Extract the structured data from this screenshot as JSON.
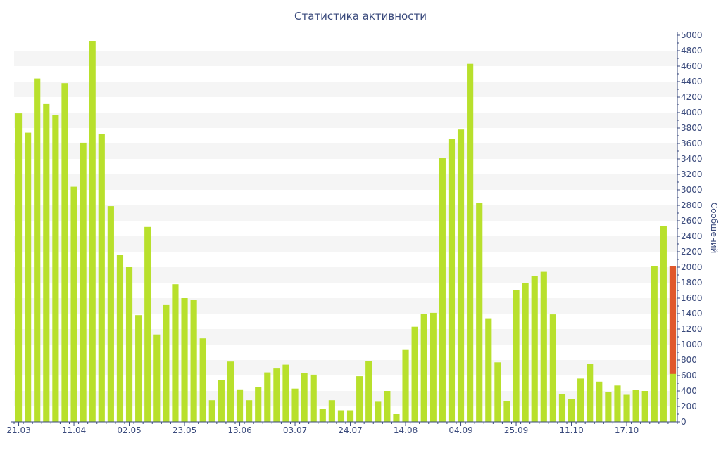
{
  "chart_data": {
    "type": "bar",
    "title": "Статистика активности",
    "ylabel": "Сообщений",
    "ylim": [
      0,
      5000
    ],
    "y_ticks": [
      0,
      200,
      400,
      600,
      800,
      1000,
      1200,
      1400,
      1600,
      1800,
      2000,
      2200,
      2400,
      2600,
      2800,
      3000,
      3200,
      3400,
      3600,
      3800,
      4000,
      4200,
      4400,
      4600,
      4800,
      5000
    ],
    "y_axis_position": "right",
    "grid": "alternating horizontal bands",
    "x_tick_labels": [
      {
        "label": "21.03",
        "index": 0
      },
      {
        "label": "11.04",
        "index": 6
      },
      {
        "label": "02.05",
        "index": 12
      },
      {
        "label": "23.05",
        "index": 18
      },
      {
        "label": "13.06",
        "index": 24
      },
      {
        "label": "03.07",
        "index": 30
      },
      {
        "label": "24.07",
        "index": 36
      },
      {
        "label": "14.08",
        "index": 42
      },
      {
        "label": "04.09",
        "index": 48
      },
      {
        "label": "25.09",
        "index": 54
      },
      {
        "label": "11.10",
        "index": 60
      },
      {
        "label": "17.10",
        "index": 66
      }
    ],
    "values": [
      3990,
      3740,
      4440,
      4110,
      3970,
      4380,
      3040,
      3610,
      4920,
      3720,
      2790,
      2160,
      2000,
      1380,
      2520,
      1130,
      1510,
      1780,
      1600,
      1580,
      1080,
      280,
      540,
      780,
      420,
      280,
      450,
      640,
      690,
      740,
      430,
      630,
      610,
      170,
      280,
      150,
      150,
      590,
      790,
      260,
      400,
      100,
      930,
      1230,
      1400,
      1410,
      3410,
      3660,
      3780,
      4630,
      2830,
      1340,
      770,
      270,
      1700,
      1800,
      1890,
      1940,
      1390,
      360,
      300,
      560,
      750,
      520,
      390,
      470,
      350,
      410,
      400,
      2010,
      2530,
      2010
    ],
    "highlight": {
      "index": 71,
      "value": 2010,
      "highlight_value": 1390
    },
    "colors": {
      "bar": "#b8e02c",
      "highlight": "#e0582c",
      "axis": "#3a4a7c",
      "band": "#f5f5f5"
    }
  }
}
